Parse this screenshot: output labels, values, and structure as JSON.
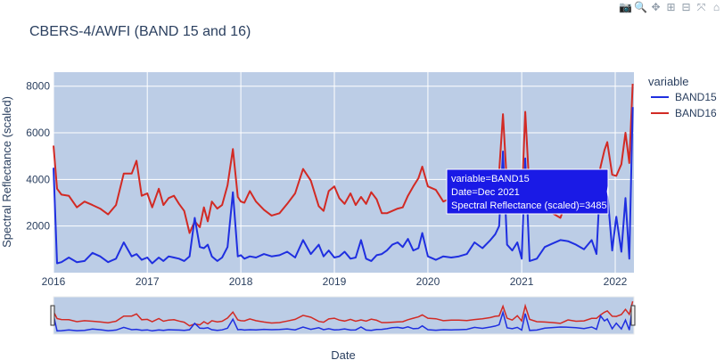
{
  "modebar": {
    "buttons": [
      {
        "name": "camera-icon",
        "glyph": "📷"
      },
      {
        "name": "zoom-icon",
        "glyph": "🔍"
      },
      {
        "name": "pan-icon",
        "glyph": "✥"
      },
      {
        "name": "zoom-in-icon",
        "glyph": "⊞"
      },
      {
        "name": "zoom-out-icon",
        "glyph": "⊟"
      },
      {
        "name": "autoscale-icon",
        "glyph": "⤧"
      },
      {
        "name": "reset-axes-icon",
        "glyph": "⌂"
      }
    ]
  },
  "chart_data": {
    "type": "line",
    "title": "CBERS-4/AWFI (BAND 15 and 16)",
    "xlabel": "Date",
    "ylabel": "Spectral Reflectance (scaled)",
    "xlim": [
      "2016-01-01",
      "2022-03-15"
    ],
    "ylim": [
      0,
      8600
    ],
    "x_ticks": [
      "2016",
      "2017",
      "2018",
      "2019",
      "2020",
      "2021",
      "2022"
    ],
    "y_ticks": [
      2000,
      4000,
      6000,
      8000
    ],
    "grid": true,
    "legend": {
      "title": "variable",
      "placement": "right"
    },
    "rangeslider": true,
    "colors": {
      "plot_bg": "#bccde6",
      "BAND15": "#1f2fe0",
      "BAND16": "#d22a24",
      "hover_bg": "#1a1ae6"
    },
    "hover": {
      "lines": [
        "variable=BAND15",
        "Date=Dec 2021",
        "Spectral Reflectance (scaled)=3485"
      ],
      "x": "2021-12-01",
      "y": 3485
    },
    "x": [
      "2016-01-01",
      "2016-01-15",
      "2016-02-01",
      "2016-03-01",
      "2016-04-01",
      "2016-05-01",
      "2016-06-01",
      "2016-07-01",
      "2016-08-01",
      "2016-09-01",
      "2016-10-01",
      "2016-11-01",
      "2016-11-20",
      "2016-12-10",
      "2017-01-01",
      "2017-01-20",
      "2017-02-15",
      "2017-03-05",
      "2017-03-25",
      "2017-04-15",
      "2017-05-05",
      "2017-05-25",
      "2017-06-15",
      "2017-07-05",
      "2017-07-25",
      "2017-08-10",
      "2017-08-25",
      "2017-09-10",
      "2017-10-01",
      "2017-10-20",
      "2017-11-10",
      "2017-12-01",
      "2017-12-20",
      "2018-01-01",
      "2018-01-15",
      "2018-02-05",
      "2018-03-01",
      "2018-04-01",
      "2018-05-01",
      "2018-06-01",
      "2018-07-01",
      "2018-08-01",
      "2018-09-01",
      "2018-10-01",
      "2018-11-01",
      "2018-11-20",
      "2018-12-10",
      "2019-01-01",
      "2019-01-20",
      "2019-02-10",
      "2019-03-05",
      "2019-03-25",
      "2019-04-15",
      "2019-05-05",
      "2019-05-25",
      "2019-06-15",
      "2019-07-05",
      "2019-07-25",
      "2019-08-15",
      "2019-09-05",
      "2019-09-25",
      "2019-10-15",
      "2019-11-05",
      "2019-11-25",
      "2019-12-10",
      "2020-01-01",
      "2020-02-01",
      "2020-03-01",
      "2020-04-01",
      "2020-05-01",
      "2020-06-01",
      "2020-07-01",
      "2020-08-01",
      "2020-09-01",
      "2020-09-20",
      "2020-10-05",
      "2020-10-20",
      "2020-11-05",
      "2020-11-25",
      "2020-12-15",
      "2021-01-01",
      "2021-01-15",
      "2021-02-01",
      "2021-03-01",
      "2021-04-01",
      "2021-05-01",
      "2021-06-01",
      "2021-07-01",
      "2021-08-01",
      "2021-09-01",
      "2021-10-01",
      "2021-10-20",
      "2021-11-05",
      "2021-11-20",
      "2021-12-01",
      "2021-12-20",
      "2022-01-05",
      "2022-01-25",
      "2022-02-10",
      "2022-02-25",
      "2022-03-10"
    ],
    "series": [
      {
        "name": "BAND15",
        "values": [
          4500,
          400,
          450,
          650,
          450,
          500,
          850,
          700,
          450,
          600,
          1300,
          700,
          800,
          550,
          650,
          400,
          650,
          500,
          700,
          650,
          600,
          500,
          700,
          2350,
          1100,
          1050,
          1200,
          700,
          500,
          650,
          1100,
          3450,
          700,
          750,
          600,
          700,
          650,
          800,
          700,
          750,
          900,
          650,
          1400,
          800,
          1200,
          700,
          950,
          650,
          700,
          900,
          600,
          650,
          1400,
          600,
          500,
          750,
          800,
          950,
          1200,
          1300,
          1100,
          1450,
          950,
          1050,
          1700,
          700,
          550,
          700,
          650,
          700,
          800,
          1300,
          1050,
          1400,
          1650,
          2000,
          5200,
          1200,
          950,
          1300,
          600,
          4900,
          500,
          600,
          1100,
          1250,
          1400,
          1350,
          1200,
          1000,
          1400,
          800,
          4300,
          3000,
          3485,
          950,
          2400,
          900,
          3200,
          600,
          7100
        ]
      },
      {
        "name": "BAND16",
        "values": [
          5450,
          3600,
          3350,
          3300,
          2800,
          3050,
          2900,
          2750,
          2500,
          2900,
          4250,
          4250,
          4800,
          3300,
          3400,
          2800,
          3600,
          2900,
          3200,
          3300,
          2950,
          2650,
          1700,
          2200,
          1950,
          2800,
          2200,
          3050,
          2750,
          2900,
          3750,
          5300,
          3250,
          3050,
          3000,
          3500,
          3050,
          2700,
          2450,
          2550,
          2950,
          3400,
          4450,
          3950,
          2850,
          2650,
          3500,
          3700,
          3200,
          2950,
          3400,
          2900,
          3250,
          2950,
          3450,
          3150,
          2550,
          2550,
          2650,
          2750,
          2800,
          3300,
          3700,
          4050,
          4550,
          3700,
          3550,
          3050,
          3200,
          3200,
          3100,
          3350,
          3550,
          3850,
          4200,
          4300,
          6800,
          3700,
          3200,
          4350,
          3000,
          6900,
          3400,
          2800,
          2700,
          2550,
          2350,
          3250,
          2900,
          3000,
          3650,
          3650,
          4550,
          5250,
          5600,
          4200,
          4150,
          4650,
          6000,
          4700,
          8100
        ]
      }
    ]
  }
}
